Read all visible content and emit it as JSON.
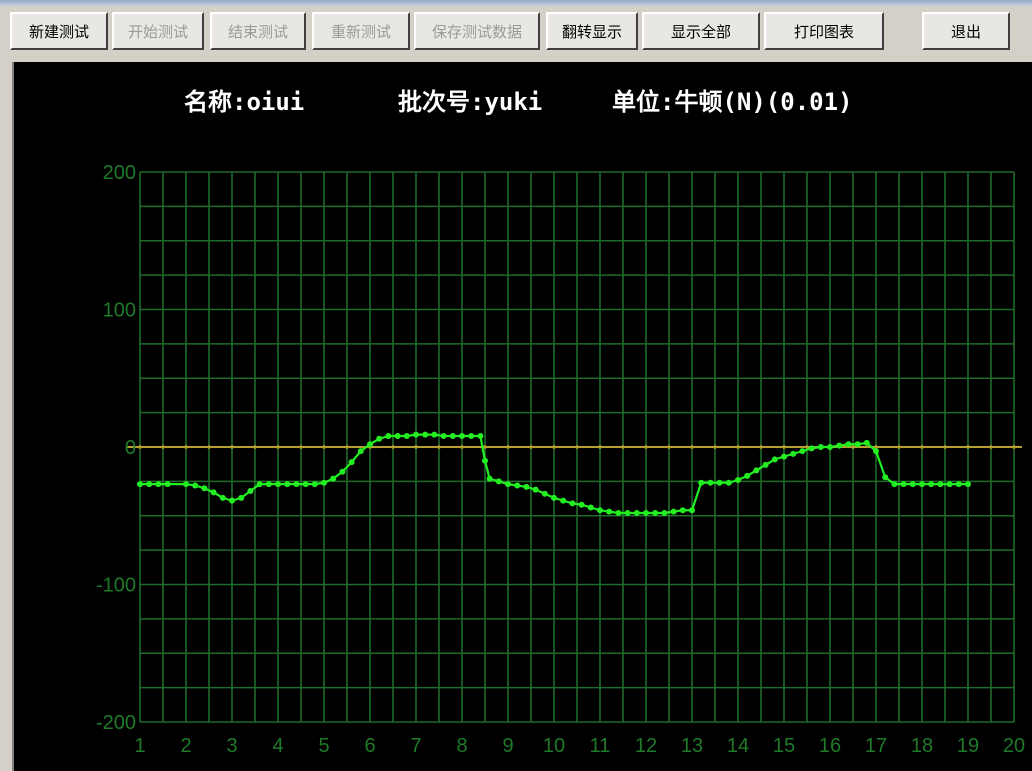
{
  "toolbar": {
    "buttons": [
      {
        "label": "新建测试",
        "enabled": true
      },
      {
        "label": "开始测试",
        "enabled": false
      },
      {
        "label": "结束测试",
        "enabled": false
      },
      {
        "label": "重新测试",
        "enabled": false
      },
      {
        "label": "保存测试数据",
        "enabled": false
      },
      {
        "label": "翻转显示",
        "enabled": true
      },
      {
        "label": "显示全部",
        "enabled": true
      },
      {
        "label": "打印图表",
        "enabled": true
      },
      {
        "label": "退出",
        "enabled": true
      }
    ]
  },
  "header": {
    "name": "名称:oiui",
    "batch": "批次号:yuki",
    "unit": "单位:牛顿(N)(0.01)"
  },
  "colors": {
    "background": "#000000",
    "grid": "#1f6b2a",
    "series": "#22ee22",
    "zero_line": "#b8a030",
    "tick_text": "#1f7a2a"
  },
  "chart_data": {
    "type": "line",
    "title": "",
    "xlabel": "",
    "ylabel": "",
    "xlim": [
      1,
      20
    ],
    "ylim": [
      -200,
      200
    ],
    "x_ticks": [
      "1",
      "2",
      "3",
      "4",
      "5",
      "6",
      "7",
      "8",
      "9",
      "10",
      "11",
      "12",
      "13",
      "14",
      "15",
      "16",
      "17",
      "18",
      "19",
      "20"
    ],
    "y_ticks": [
      "200",
      "100",
      "0",
      "-100",
      "-200"
    ],
    "grid": true,
    "reference_line": 0,
    "series": [
      {
        "x": [
          1.0,
          1.2,
          1.4,
          1.6,
          2.0,
          2.2,
          2.4,
          2.6,
          2.8,
          3.0,
          3.2,
          3.4,
          3.6,
          3.8,
          4.0,
          4.2,
          4.4,
          4.6,
          4.8,
          5.0,
          5.2,
          5.4,
          5.6,
          5.8,
          6.0,
          6.2,
          6.4,
          6.6,
          6.8,
          7.0,
          7.2,
          7.4,
          7.6,
          7.8,
          8.0,
          8.2,
          8.4,
          8.5,
          8.6,
          8.8,
          9.0,
          9.2,
          9.4,
          9.6,
          9.8,
          10.0,
          10.2,
          10.4,
          10.6,
          10.8,
          11.0,
          11.2,
          11.4,
          11.6,
          11.8,
          12.0,
          12.2,
          12.4,
          12.6,
          12.8,
          13.0,
          13.2,
          13.4,
          13.6,
          13.8,
          14.0,
          14.2,
          14.4,
          14.6,
          14.8,
          15.0,
          15.2,
          15.4,
          15.6,
          15.8,
          16.0,
          16.2,
          16.4,
          16.6,
          16.8,
          17.0,
          17.2,
          17.4,
          17.6,
          17.8,
          18.0,
          18.2,
          18.4,
          18.6,
          18.8,
          19.0
        ],
        "y": [
          -27,
          -27,
          -27,
          -27,
          -27,
          -28,
          -30,
          -33,
          -37,
          -39,
          -37,
          -32,
          -27,
          -27,
          -27,
          -27,
          -27,
          -27,
          -27,
          -26,
          -23,
          -18,
          -11,
          -3,
          2,
          6,
          8,
          8,
          8,
          9,
          9,
          9,
          8,
          8,
          8,
          8,
          8,
          -10,
          -23,
          -25,
          -27,
          -28,
          -29,
          -31,
          -34,
          -37,
          -39,
          -41,
          -42,
          -44,
          -46,
          -47,
          -48,
          -48,
          -48,
          -48,
          -48,
          -48,
          -47,
          -46,
          -46,
          -26,
          -26,
          -26,
          -26,
          -24,
          -21,
          -17,
          -13,
          -9,
          -7,
          -5,
          -3,
          -1,
          0,
          0,
          1,
          2,
          2,
          3,
          -3,
          -22,
          -27,
          -27,
          -27,
          -27,
          -27,
          -27,
          -27,
          -27,
          -27
        ]
      }
    ]
  }
}
